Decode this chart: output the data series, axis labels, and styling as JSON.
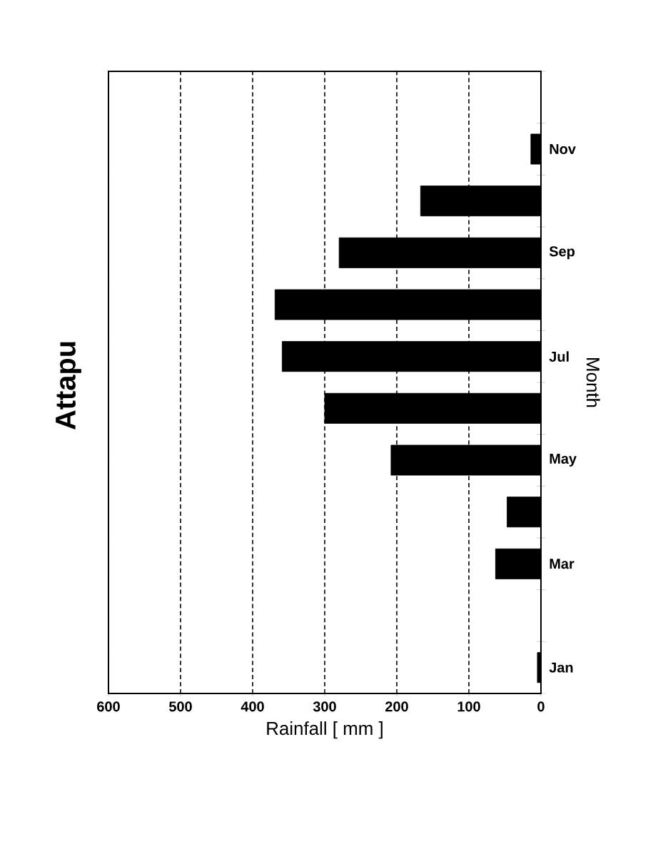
{
  "chart_data": {
    "type": "bar",
    "orientation": "horizontal",
    "title": "Attapu",
    "xlabel": "Rainfall [ mm ]",
    "ylabel": "Month",
    "categories": [
      null,
      "Nov",
      null,
      "Sep",
      null,
      "Jul",
      null,
      "May",
      null,
      "Mar",
      null,
      "Jan"
    ],
    "values": [
      0,
      14,
      167,
      280,
      369,
      359,
      300,
      208,
      47,
      63,
      0,
      5
    ],
    "color": "#000000",
    "xlim": [
      600,
      0
    ],
    "xticks": [
      600,
      500,
      400,
      300,
      200,
      100,
      0
    ],
    "grid": "x"
  }
}
